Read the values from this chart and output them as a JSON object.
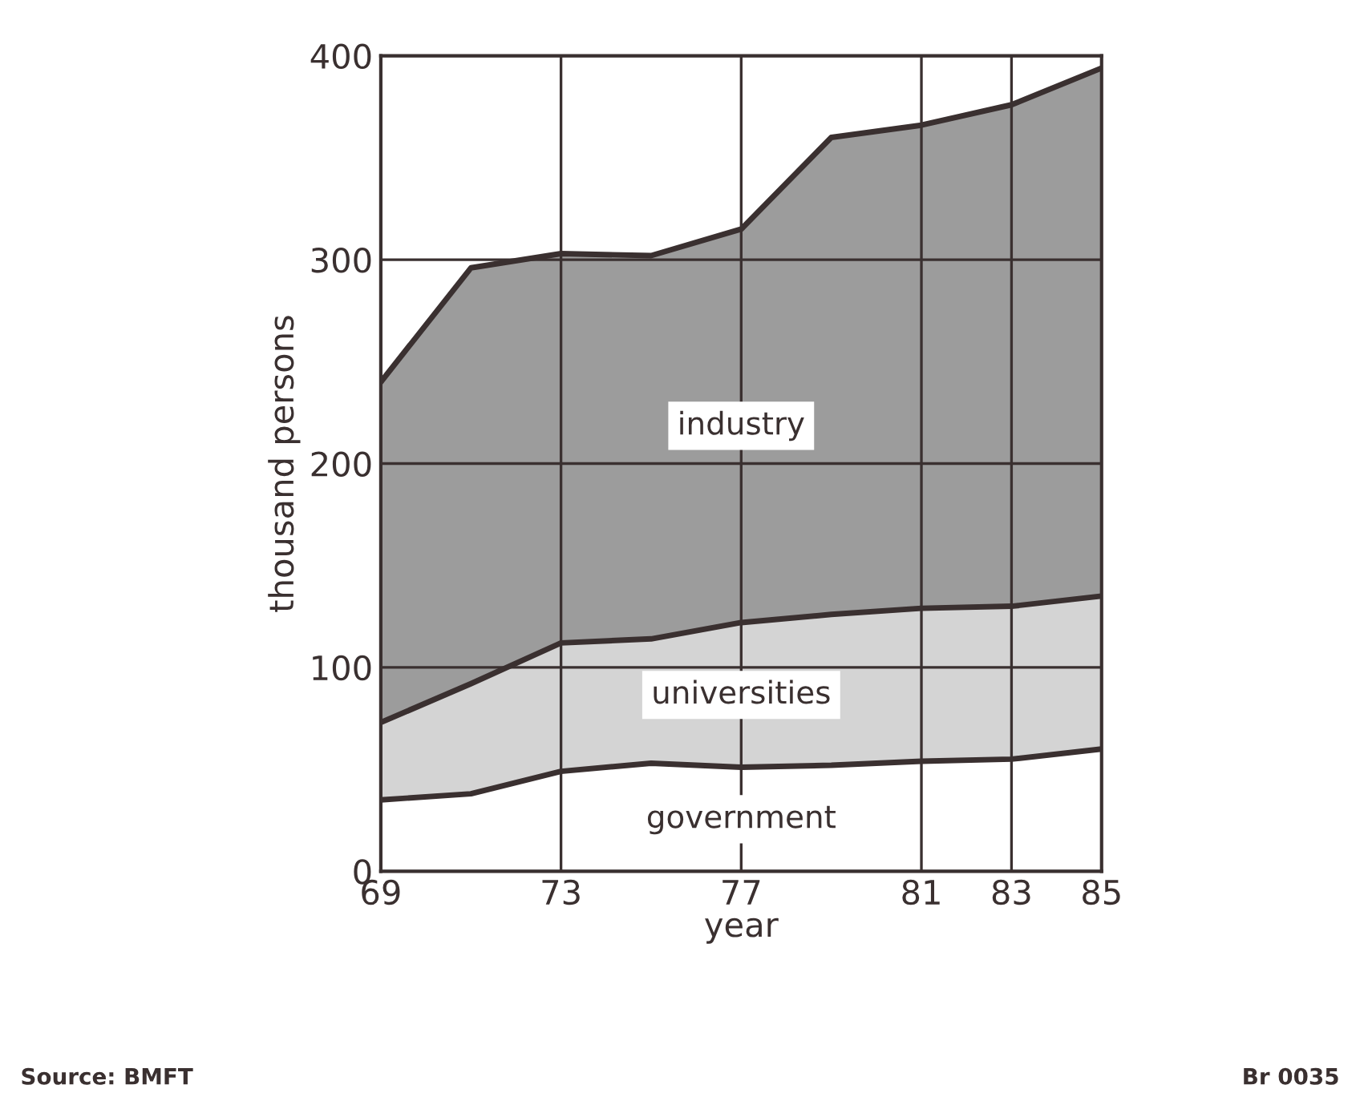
{
  "chart_data": {
    "type": "area",
    "stacked": true,
    "x": [
      69,
      71,
      73,
      75,
      77,
      79,
      81,
      83,
      85
    ],
    "series": [
      {
        "name": "government",
        "color": "#ffffff",
        "values": [
          35,
          38,
          49,
          53,
          51,
          52,
          54,
          55,
          60
        ]
      },
      {
        "name": "universities",
        "color": "#d4d4d4",
        "values": [
          38,
          54,
          63,
          61,
          71,
          74,
          75,
          75,
          75
        ]
      },
      {
        "name": "industry",
        "color": "#9c9c9c",
        "values": [
          167,
          204,
          191,
          188,
          193,
          234,
          237,
          246,
          259
        ]
      }
    ],
    "xlabel": "year",
    "ylabel": "thousand persons",
    "xlim": [
      69,
      85
    ],
    "ylim": [
      0,
      400
    ],
    "xticks": [
      69,
      73,
      77,
      81,
      83,
      85
    ],
    "yticks": [
      0,
      100,
      200,
      300,
      400
    ],
    "grid": true,
    "legend": false,
    "annotations": [
      "Source: BMFT",
      "Br 0035"
    ]
  }
}
